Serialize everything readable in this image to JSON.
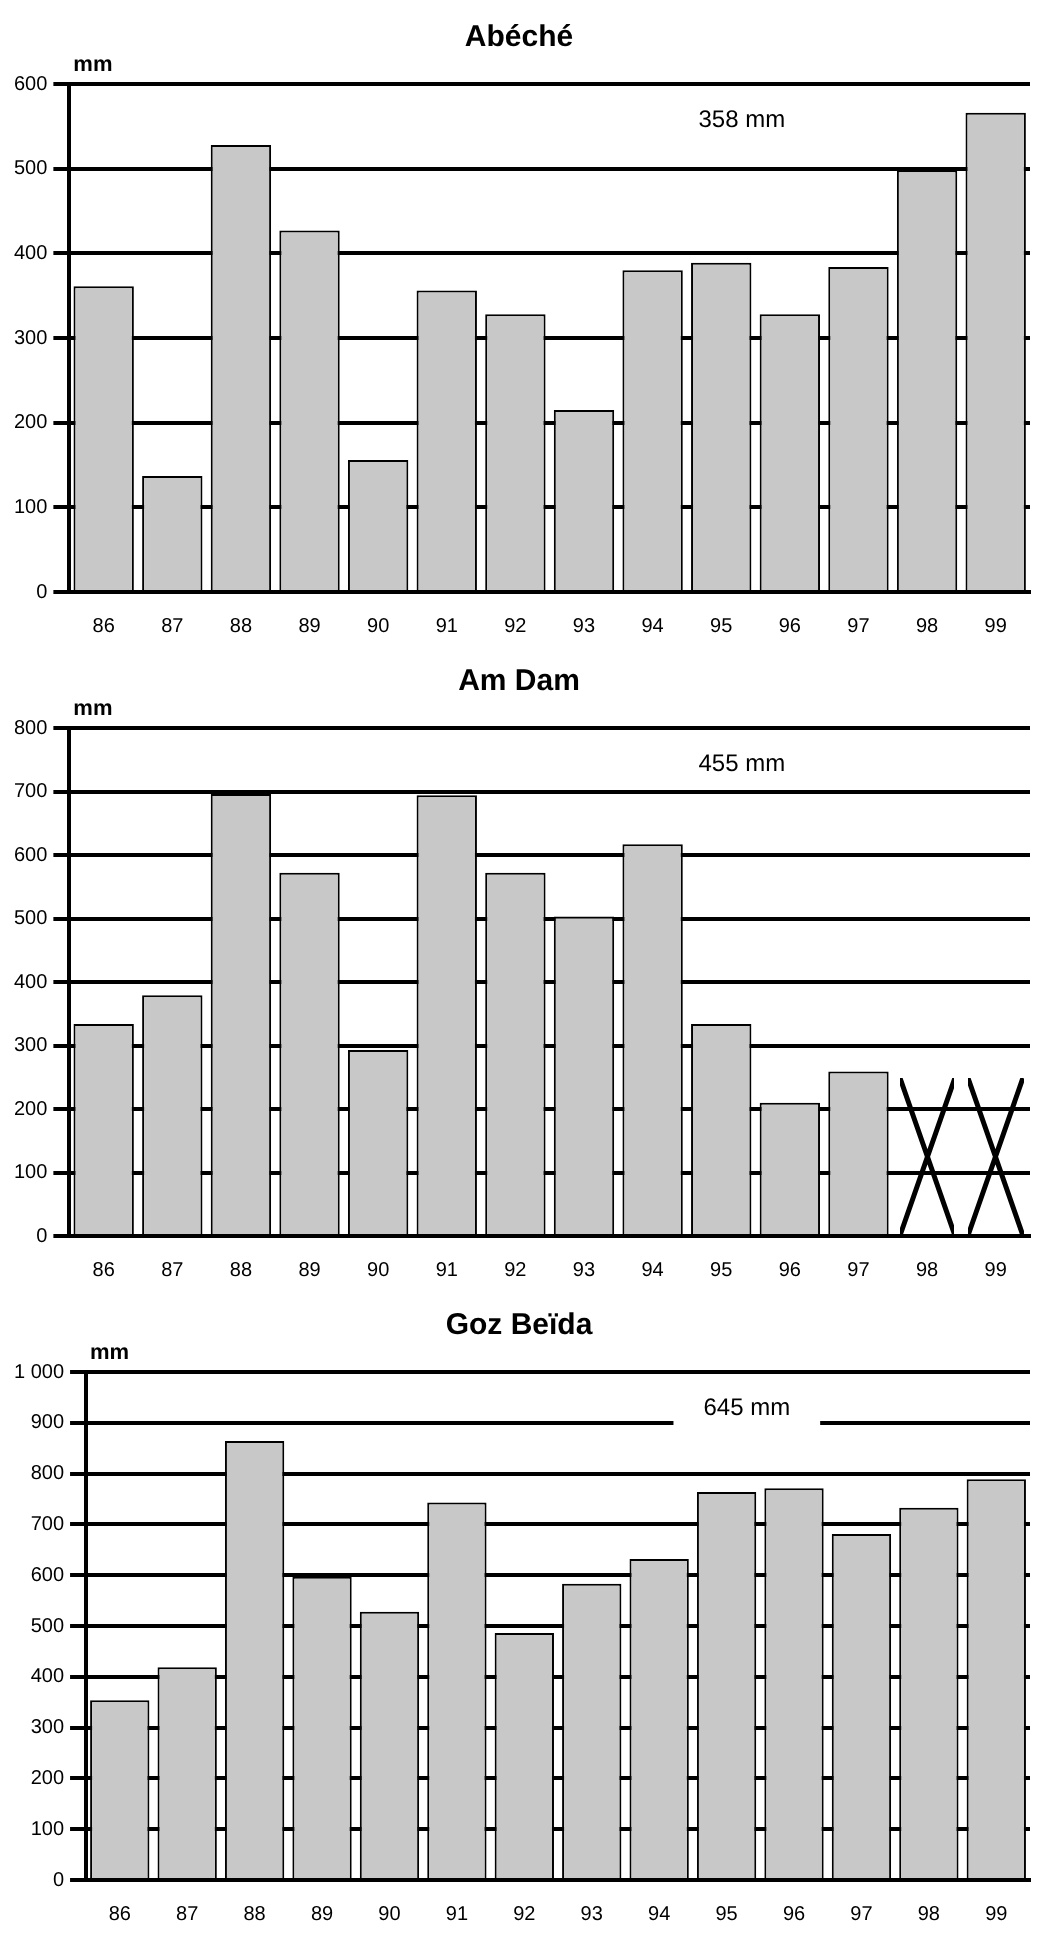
{
  "chart_data": [
    {
      "type": "bar",
      "title": "Abéché",
      "ylabel": "mm",
      "categories": [
        "86",
        "87",
        "88",
        "89",
        "90",
        "91",
        "92",
        "93",
        "94",
        "95",
        "96",
        "97",
        "98",
        "99"
      ],
      "values": [
        361,
        137,
        528,
        427,
        156,
        356,
        328,
        215,
        380,
        389,
        328,
        384,
        498,
        566
      ],
      "color": "#c8c8c8",
      "ylim": [
        0,
        600
      ],
      "yticks": [
        0,
        100,
        200,
        300,
        400,
        500,
        600
      ],
      "grid": "y",
      "annotations": [
        "358 mm"
      ]
    },
    {
      "type": "bar",
      "title": "Am Dam",
      "ylabel": "mm",
      "categories": [
        "86",
        "87",
        "88",
        "89",
        "90",
        "91",
        "92",
        "93",
        "94",
        "95",
        "96",
        "97",
        "98",
        "99"
      ],
      "values": [
        334,
        379,
        696,
        572,
        293,
        694,
        572,
        503,
        617,
        334,
        210,
        259,
        null,
        null
      ],
      "color": "#c8c8c8",
      "ylim": [
        0,
        800
      ],
      "yticks": [
        0,
        100,
        200,
        300,
        400,
        500,
        600,
        700,
        800
      ],
      "grid": "y",
      "annotations": [
        "455 mm"
      ]
    },
    {
      "type": "bar",
      "title": "Goz Beïda",
      "ylabel": "mm",
      "categories": [
        "86",
        "87",
        "88",
        "89",
        "90",
        "91",
        "92",
        "93",
        "94",
        "95",
        "96",
        "97",
        "98",
        "99"
      ],
      "values": [
        354,
        419,
        864,
        597,
        528,
        743,
        486,
        583,
        632,
        764,
        771,
        681,
        733,
        789
      ],
      "color": "#c8c8c8",
      "ylim": [
        0,
        1000
      ],
      "yticks": [
        0,
        100,
        200,
        300,
        400,
        500,
        600,
        700,
        800,
        900,
        {
          "value": 1000,
          "label": "1 000"
        }
      ],
      "grid": "y",
      "annotations": [
        "645 mm"
      ]
    }
  ]
}
